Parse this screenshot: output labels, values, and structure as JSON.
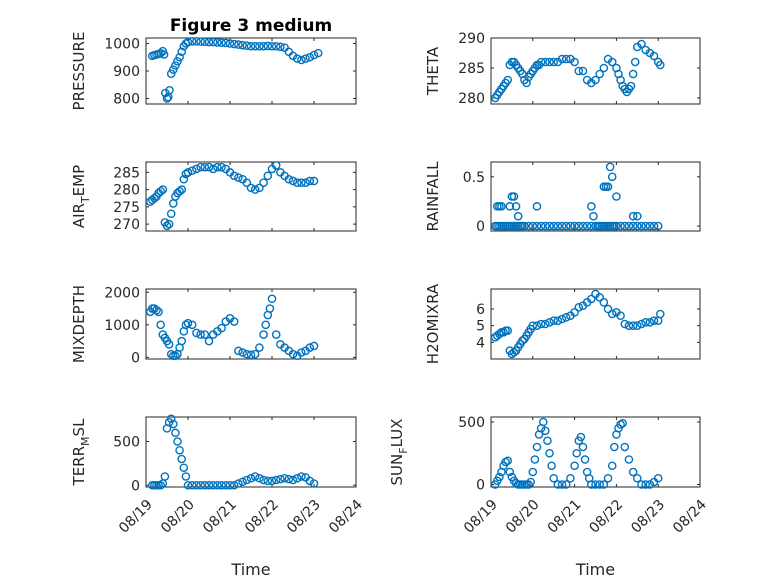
{
  "figure": {
    "title": "Figure 3 medium"
  },
  "colors": {
    "marker": "#0072BD",
    "axis": "#262626",
    "grid": "#c8c8c8"
  },
  "x_ticks": [
    "08/19",
    "08/20",
    "08/21",
    "08/22",
    "08/23",
    "08/24"
  ],
  "x_label": "Time",
  "chart_data": [
    {
      "type": "scatter",
      "ylabel": "PRESSURE",
      "xlim": [
        0,
        5
      ],
      "ylim": [
        780,
        1020
      ],
      "yticks": [
        800,
        900,
        1000
      ],
      "grid": true,
      "x": [
        0.15,
        0.2,
        0.25,
        0.3,
        0.35,
        0.4,
        0.43,
        0.46,
        0.5,
        0.53,
        0.56,
        0.6,
        0.65,
        0.7,
        0.75,
        0.8,
        0.85,
        0.9,
        0.95,
        1.0,
        1.1,
        1.2,
        1.3,
        1.4,
        1.5,
        1.6,
        1.7,
        1.8,
        1.9,
        2.0,
        2.1,
        2.2,
        2.3,
        2.4,
        2.5,
        2.6,
        2.7,
        2.8,
        2.9,
        3.0,
        3.1,
        3.2,
        3.3,
        3.4,
        3.5,
        3.6,
        3.7,
        3.8,
        3.9,
        4.0,
        4.1
      ],
      "y": [
        955,
        958,
        960,
        962,
        965,
        972,
        960,
        820,
        800,
        805,
        830,
        890,
        905,
        920,
        935,
        950,
        970,
        990,
        1000,
        1005,
        1008,
        1008,
        1007,
        1006,
        1005,
        1005,
        1004,
        1003,
        1002,
        1000,
        998,
        996,
        994,
        992,
        990,
        990,
        990,
        990,
        991,
        990,
        990,
        988,
        985,
        970,
        955,
        945,
        940,
        945,
        950,
        958,
        965
      ]
    },
    {
      "type": "scatter",
      "ylabel": "THETA",
      "xlim": [
        0,
        5
      ],
      "ylim": [
        279,
        290
      ],
      "yticks": [
        280,
        285,
        290
      ],
      "grid": true,
      "x": [
        0.1,
        0.15,
        0.2,
        0.25,
        0.3,
        0.35,
        0.4,
        0.45,
        0.5,
        0.55,
        0.6,
        0.65,
        0.7,
        0.75,
        0.8,
        0.85,
        0.9,
        0.95,
        1.0,
        1.05,
        1.1,
        1.15,
        1.2,
        1.3,
        1.4,
        1.5,
        1.6,
        1.7,
        1.8,
        1.9,
        2.0,
        2.1,
        2.2,
        2.3,
        2.4,
        2.5,
        2.6,
        2.7,
        2.8,
        2.9,
        3.0,
        3.05,
        3.1,
        3.15,
        3.2,
        3.25,
        3.3,
        3.35,
        3.4,
        3.45,
        3.5,
        3.6,
        3.7,
        3.8,
        3.9,
        4.0,
        4.05
      ],
      "y": [
        280,
        280.5,
        281,
        281.5,
        282,
        282.5,
        283,
        285.5,
        286,
        286,
        285.5,
        285,
        284.5,
        284,
        283,
        282.5,
        283.5,
        284,
        284.5,
        285,
        285.5,
        285.5,
        286,
        286,
        286,
        286,
        286,
        286.5,
        286.5,
        286.5,
        286,
        284.5,
        284.5,
        283,
        282.5,
        283,
        284,
        285,
        286.5,
        286,
        285,
        284,
        283,
        282,
        281.5,
        281,
        281.5,
        282,
        284,
        286,
        288.5,
        289,
        288,
        287.5,
        287,
        286,
        285.5
      ]
    },
    {
      "type": "scatter",
      "ylabel": "AIR_TEMP",
      "xlim": [
        0,
        5
      ],
      "ylim": [
        268,
        288
      ],
      "yticks": [
        270,
        275,
        280,
        285
      ],
      "grid": true,
      "x": [
        0.1,
        0.15,
        0.2,
        0.25,
        0.3,
        0.35,
        0.4,
        0.45,
        0.5,
        0.55,
        0.6,
        0.65,
        0.7,
        0.75,
        0.8,
        0.85,
        0.9,
        0.95,
        1.0,
        1.1,
        1.2,
        1.3,
        1.4,
        1.5,
        1.6,
        1.7,
        1.8,
        1.9,
        2.0,
        2.1,
        2.2,
        2.3,
        2.4,
        2.5,
        2.6,
        2.7,
        2.8,
        2.9,
        3.0,
        3.1,
        3.2,
        3.3,
        3.4,
        3.5,
        3.6,
        3.7,
        3.8,
        3.9,
        4.0
      ],
      "y": [
        276.5,
        277,
        277.5,
        278,
        279,
        279.5,
        280,
        270.5,
        269.5,
        270,
        273,
        276,
        278,
        279,
        279.5,
        280,
        283,
        284.5,
        285,
        285.5,
        286,
        286.5,
        286.5,
        286.5,
        286,
        286.5,
        286.5,
        286,
        285,
        284,
        283.5,
        283,
        282,
        280.5,
        280,
        280.5,
        282,
        284,
        286,
        287,
        285,
        284,
        283,
        282.5,
        282,
        282,
        282,
        282.5,
        282.5
      ]
    },
    {
      "type": "scatter",
      "ylabel": "RAINFALL",
      "xlim": [
        0,
        5
      ],
      "ylim": [
        -0.05,
        0.65
      ],
      "yticks": [
        0,
        0.5
      ],
      "grid": true,
      "x": [
        0.1,
        0.15,
        0.2,
        0.25,
        0.3,
        0.35,
        0.4,
        0.45,
        0.5,
        0.55,
        0.6,
        0.65,
        0.7,
        0.75,
        0.8,
        0.9,
        1.0,
        1.1,
        1.2,
        1.3,
        1.4,
        1.5,
        1.6,
        1.7,
        1.8,
        1.9,
        2.0,
        2.1,
        2.2,
        2.3,
        2.4,
        2.5,
        2.55,
        2.6,
        2.65,
        2.7,
        2.75,
        2.8,
        2.85,
        2.9,
        2.95,
        3.0,
        3.1,
        3.2,
        3.3,
        3.4,
        3.5,
        3.6,
        3.7,
        3.8,
        3.9,
        4.0,
        0.15,
        0.2,
        0.25,
        0.45,
        0.5,
        0.55,
        0.6,
        0.65,
        1.1,
        2.4,
        2.45,
        2.7,
        2.75,
        2.8,
        2.85,
        2.9,
        3.0,
        3.4,
        3.5
      ],
      "y": [
        0,
        0,
        0,
        0,
        0,
        0,
        0,
        0,
        0,
        0,
        0,
        0,
        0,
        0,
        0,
        0,
        0,
        0,
        0,
        0,
        0,
        0,
        0,
        0,
        0,
        0,
        0,
        0,
        0,
        0,
        0,
        0,
        0,
        0,
        0,
        0,
        0,
        0,
        0,
        0,
        0,
        0,
        0,
        0,
        0,
        0,
        0,
        0,
        0,
        0,
        0,
        0,
        0.2,
        0.2,
        0.2,
        0.2,
        0.3,
        0.3,
        0.2,
        0.1,
        0.2,
        0.2,
        0.1,
        0.4,
        0.4,
        0.4,
        0.6,
        0.5,
        0.3,
        0.1,
        0.1
      ]
    },
    {
      "type": "scatter",
      "ylabel": "MIXDEPTH",
      "xlim": [
        0,
        5
      ],
      "ylim": [
        -50,
        2100
      ],
      "yticks": [
        0,
        1000,
        2000
      ],
      "grid": true,
      "x": [
        0.1,
        0.15,
        0.2,
        0.25,
        0.3,
        0.35,
        0.4,
        0.45,
        0.5,
        0.55,
        0.6,
        0.65,
        0.7,
        0.75,
        0.8,
        0.85,
        0.9,
        0.95,
        1.0,
        1.1,
        1.2,
        1.3,
        1.4,
        1.5,
        1.6,
        1.7,
        1.8,
        1.9,
        2.0,
        2.1,
        2.2,
        2.3,
        2.4,
        2.5,
        2.6,
        2.7,
        2.8,
        2.85,
        2.9,
        2.95,
        3.0,
        3.1,
        3.2,
        3.3,
        3.4,
        3.5,
        3.6,
        3.7,
        3.8,
        3.9,
        4.0
      ],
      "y": [
        1400,
        1500,
        1500,
        1450,
        1400,
        1000,
        700,
        600,
        500,
        400,
        100,
        50,
        50,
        100,
        300,
        500,
        800,
        1000,
        1050,
        1000,
        750,
        700,
        700,
        500,
        700,
        800,
        900,
        1100,
        1200,
        1100,
        200,
        150,
        100,
        80,
        100,
        300,
        700,
        1000,
        1300,
        1500,
        1800,
        700,
        400,
        300,
        200,
        100,
        50,
        150,
        200,
        300,
        350
      ]
    },
    {
      "type": "scatter",
      "ylabel": "H2OMIXRA",
      "xlim": [
        0,
        5
      ],
      "ylim": [
        3,
        7.2
      ],
      "yticks": [
        4,
        5,
        6
      ],
      "grid": true,
      "x": [
        0.1,
        0.15,
        0.2,
        0.25,
        0.3,
        0.35,
        0.4,
        0.45,
        0.5,
        0.55,
        0.6,
        0.65,
        0.7,
        0.75,
        0.8,
        0.85,
        0.9,
        0.95,
        1.0,
        1.1,
        1.2,
        1.3,
        1.4,
        1.5,
        1.6,
        1.7,
        1.8,
        1.9,
        2.0,
        2.1,
        2.2,
        2.3,
        2.4,
        2.5,
        2.6,
        2.7,
        2.8,
        2.9,
        3.0,
        3.1,
        3.2,
        3.3,
        3.4,
        3.5,
        3.6,
        3.7,
        3.8,
        3.9,
        4.0,
        4.05
      ],
      "y": [
        4.3,
        4.4,
        4.5,
        4.6,
        4.6,
        4.7,
        4.7,
        3.5,
        3.3,
        3.4,
        3.5,
        3.7,
        3.9,
        4.1,
        4.2,
        4.4,
        4.6,
        4.8,
        5.0,
        5.0,
        5.1,
        5.1,
        5.2,
        5.3,
        5.3,
        5.4,
        5.5,
        5.6,
        5.8,
        6.1,
        6.2,
        6.4,
        6.6,
        6.9,
        6.7,
        6.4,
        6.0,
        5.7,
        5.8,
        5.6,
        5.1,
        5.0,
        5.0,
        5.0,
        5.1,
        5.2,
        5.2,
        5.3,
        5.3,
        5.7
      ]
    },
    {
      "type": "scatter",
      "ylabel": "TERR_MSL",
      "xlim": [
        0,
        5
      ],
      "ylim": [
        -20,
        780
      ],
      "yticks": [
        0,
        500
      ],
      "grid": true,
      "x": [
        0.15,
        0.2,
        0.25,
        0.3,
        0.35,
        0.4,
        0.45,
        0.5,
        0.55,
        0.6,
        0.65,
        0.7,
        0.75,
        0.8,
        0.85,
        0.9,
        0.95,
        1.0,
        1.1,
        1.2,
        1.3,
        1.4,
        1.5,
        1.6,
        1.7,
        1.8,
        1.9,
        2.0,
        2.1,
        2.2,
        2.3,
        2.4,
        2.5,
        2.6,
        2.7,
        2.8,
        2.9,
        3.0,
        3.1,
        3.2,
        3.3,
        3.4,
        3.5,
        3.6,
        3.7,
        3.8,
        3.9,
        4.0
      ],
      "y": [
        0,
        0,
        0,
        0,
        0,
        20,
        100,
        650,
        720,
        760,
        700,
        600,
        500,
        400,
        300,
        200,
        100,
        0,
        0,
        0,
        0,
        0,
        0,
        0,
        0,
        0,
        0,
        0,
        0,
        20,
        40,
        60,
        80,
        100,
        80,
        60,
        50,
        50,
        60,
        70,
        80,
        70,
        60,
        80,
        100,
        90,
        50,
        20
      ]
    },
    {
      "type": "scatter",
      "ylabel": "SUN_FLUX",
      "xlim": [
        0,
        5
      ],
      "ylim": [
        -20,
        540
      ],
      "yticks": [
        0,
        500
      ],
      "grid": true,
      "x": [
        0.1,
        0.15,
        0.2,
        0.25,
        0.3,
        0.35,
        0.4,
        0.45,
        0.5,
        0.55,
        0.6,
        0.65,
        0.7,
        0.75,
        0.8,
        0.85,
        0.9,
        0.95,
        1.0,
        1.05,
        1.1,
        1.15,
        1.2,
        1.25,
        1.3,
        1.35,
        1.4,
        1.45,
        1.5,
        1.6,
        1.7,
        1.8,
        1.9,
        2.0,
        2.05,
        2.1,
        2.15,
        2.2,
        2.25,
        2.3,
        2.35,
        2.4,
        2.5,
        2.6,
        2.7,
        2.8,
        2.9,
        2.95,
        3.0,
        3.05,
        3.1,
        3.15,
        3.2,
        3.3,
        3.4,
        3.5,
        3.6,
        3.7,
        3.8,
        3.9,
        4.0
      ],
      "y": [
        0,
        30,
        60,
        100,
        150,
        180,
        190,
        100,
        60,
        30,
        10,
        0,
        0,
        0,
        0,
        0,
        0,
        20,
        100,
        200,
        300,
        400,
        450,
        500,
        430,
        350,
        250,
        150,
        50,
        0,
        0,
        0,
        50,
        150,
        250,
        350,
        380,
        300,
        200,
        100,
        50,
        0,
        0,
        0,
        0,
        50,
        150,
        300,
        400,
        450,
        480,
        490,
        300,
        200,
        100,
        50,
        0,
        0,
        0,
        20,
        50
      ]
    }
  ]
}
